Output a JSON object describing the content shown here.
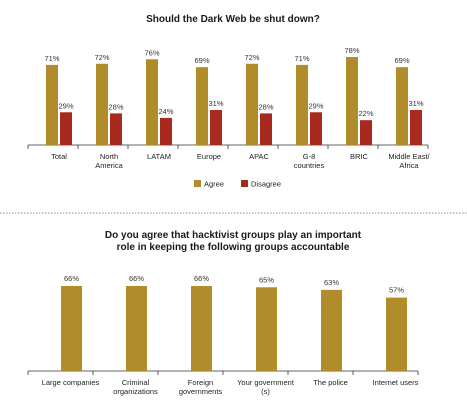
{
  "colors": {
    "agree": "#B08D2A",
    "disagree": "#A8291E",
    "single": "#B08D2A",
    "axis": "#333333"
  },
  "chart_data": [
    {
      "type": "bar",
      "title": "Should the Dark Web be shut down?",
      "categories": [
        [
          "Total"
        ],
        [
          "North",
          "America"
        ],
        [
          "LATAM"
        ],
        [
          "Europe"
        ],
        [
          "APAC"
        ],
        [
          "G-8",
          "countries"
        ],
        [
          "BRIC"
        ],
        [
          "Middle East/",
          "Africa"
        ]
      ],
      "series": [
        {
          "name": "Agree",
          "values": [
            71,
            72,
            76,
            69,
            72,
            71,
            78,
            69
          ],
          "labels": [
            "71%",
            "72%",
            "76%",
            "69%",
            "72%",
            "71%",
            "78%",
            "69%"
          ]
        },
        {
          "name": "Disagree",
          "values": [
            29,
            28,
            24,
            31,
            28,
            29,
            22,
            31
          ],
          "labels": [
            "29%",
            "28%",
            "24%",
            "31%",
            "28%",
            "29%",
            "22%",
            "31%"
          ]
        }
      ],
      "ylim": [
        0,
        100
      ],
      "grid": false,
      "legend": "bottom-center"
    },
    {
      "type": "bar",
      "title": [
        "Do you agree that hacktivist groups play an important",
        "role in keeping the following groups accountable"
      ],
      "categories": [
        [
          "Large companies"
        ],
        [
          "Criminal",
          "organizations"
        ],
        [
          "Foreign",
          "governments"
        ],
        [
          "Your government",
          "(s)"
        ],
        [
          "The police"
        ],
        [
          "Internet users"
        ]
      ],
      "values": [
        66,
        66,
        66,
        65,
        63,
        57
      ],
      "labels": [
        "66%",
        "66%",
        "66%",
        "65%",
        "63%",
        "57%"
      ],
      "ylim": [
        0,
        100
      ],
      "grid": false
    }
  ]
}
